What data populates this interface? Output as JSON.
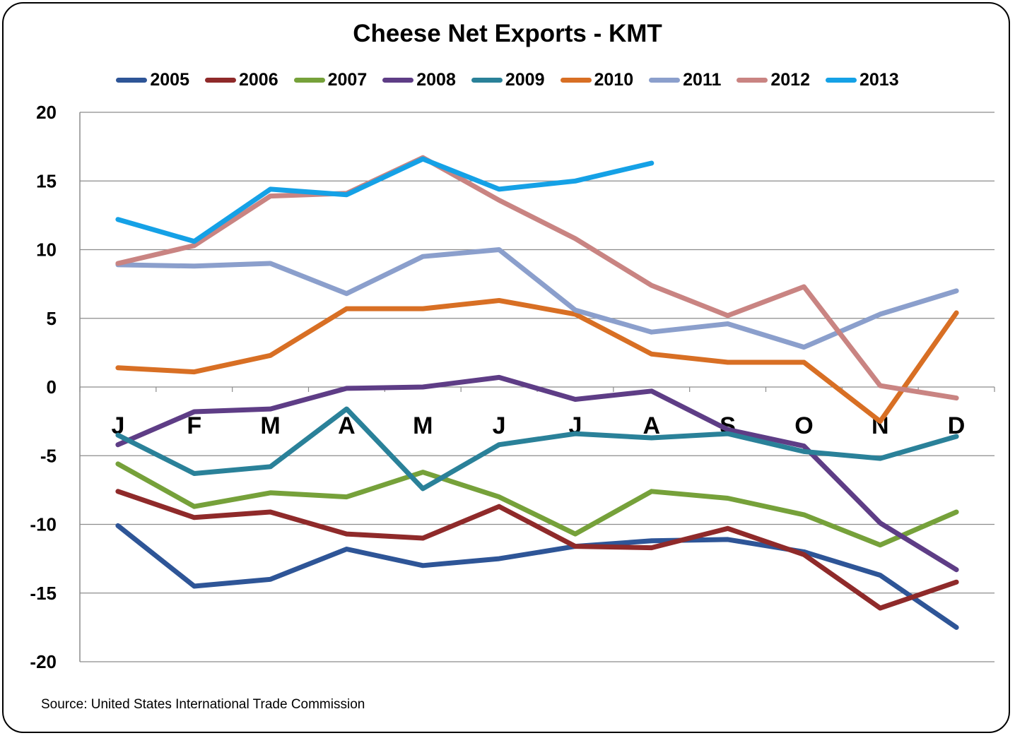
{
  "chart_data": {
    "type": "line",
    "title": "Cheese Net Exports - KMT",
    "xlabel": "",
    "ylabel": "",
    "categories": [
      "J",
      "F",
      "M",
      "A",
      "M",
      "J",
      "J",
      "A",
      "S",
      "O",
      "N",
      "D"
    ],
    "ylim": [
      -20,
      20
    ],
    "yticks": [
      20,
      15,
      10,
      5,
      0,
      -5,
      -10,
      -15,
      -20
    ],
    "grid": true,
    "legend_position": "top",
    "series": [
      {
        "name": "2005",
        "color": "#2e5597",
        "values": [
          -10.1,
          -14.5,
          -14.0,
          -11.8,
          -13.0,
          -12.5,
          -11.6,
          -11.2,
          -11.1,
          -12.0,
          -13.7,
          -17.5
        ]
      },
      {
        "name": "2006",
        "color": "#8f2a2a",
        "values": [
          -7.6,
          -9.5,
          -9.1,
          -10.7,
          -11.0,
          -8.7,
          -11.6,
          -11.7,
          -10.3,
          -12.2,
          -16.1,
          -14.2
        ]
      },
      {
        "name": "2007",
        "color": "#76a13a",
        "values": [
          -5.6,
          -8.7,
          -7.7,
          -8.0,
          -6.2,
          -8.0,
          -10.7,
          -7.6,
          -8.1,
          -9.3,
          -11.5,
          -9.1
        ]
      },
      {
        "name": "2008",
        "color": "#5e3d86",
        "values": [
          -4.2,
          -1.8,
          -1.6,
          -0.1,
          0.0,
          0.7,
          -0.9,
          -0.3,
          -3.1,
          -4.3,
          -9.9,
          -13.3
        ]
      },
      {
        "name": "2009",
        "color": "#2a8199",
        "values": [
          -3.5,
          -6.3,
          -5.8,
          -1.6,
          -7.4,
          -4.2,
          -3.4,
          -3.7,
          -3.4,
          -4.7,
          -5.2,
          -3.6
        ]
      },
      {
        "name": "2010",
        "color": "#d86f24",
        "values": [
          1.4,
          1.1,
          2.3,
          5.7,
          5.7,
          6.3,
          5.3,
          2.4,
          1.8,
          1.8,
          -2.5,
          5.4
        ]
      },
      {
        "name": "2011",
        "color": "#8b9fcc",
        "values": [
          8.9,
          8.8,
          9.0,
          6.8,
          9.5,
          10.0,
          5.6,
          4.0,
          4.6,
          2.9,
          5.3,
          7.0
        ]
      },
      {
        "name": "2012",
        "color": "#c98482",
        "values": [
          9.0,
          10.3,
          13.9,
          14.1,
          16.7,
          13.6,
          10.8,
          7.4,
          5.2,
          7.3,
          0.1,
          -0.8
        ]
      },
      {
        "name": "2013",
        "color": "#15a1e6",
        "values": [
          12.2,
          10.6,
          14.4,
          14.0,
          16.6,
          14.4,
          15.0,
          16.3,
          null,
          null,
          null,
          null
        ]
      }
    ]
  },
  "source": "Source: United States International Trade Commission"
}
